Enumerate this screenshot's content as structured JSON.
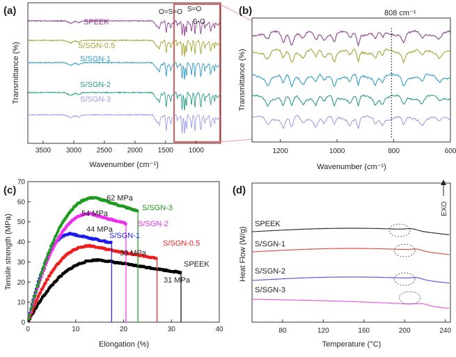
{
  "chart_data": [
    {
      "panel": "(a)",
      "type": "line",
      "xlabel": "Wavenumber (cm⁻¹)",
      "ylabel": "Transmittance (%)",
      "xlim": [
        3750,
        600
      ],
      "x_reversed": true,
      "xticks": [
        "3500",
        "3000",
        "2500",
        "2000",
        "1500",
        "1000"
      ],
      "series": [
        {
          "name": "SPEEK",
          "color": "#8e3d8e"
        },
        {
          "name": "S/SGN-0.5",
          "color": "#a3a333"
        },
        {
          "name": "S/SGN-1",
          "color": "#2e9bc4"
        },
        {
          "name": "S/SGN-2",
          "color": "#2a9a8a"
        },
        {
          "name": "S/SGN-3",
          "color": "#9c9ce8"
        }
      ],
      "annotations": [
        "O=S=O",
        "S=O",
        "S-O"
      ],
      "highlight_range": [
        1300,
        650
      ]
    },
    {
      "panel": "(b)",
      "type": "line",
      "xlabel": "Wavenumber (cm⁻¹)",
      "ylabel": "Transmittance (%)",
      "xlim": [
        1300,
        600
      ],
      "x_reversed": true,
      "xticks": [
        "1200",
        "1000",
        "800",
        "600"
      ],
      "marker_line": 808,
      "annotation": "808 cm⁻¹"
    },
    {
      "panel": "(c)",
      "type": "line",
      "xlabel": "Elongation (%)",
      "ylabel": "Tensile strength (MPa)",
      "xlim": [
        0,
        40
      ],
      "ylim": [
        0,
        70
      ],
      "xticks": [
        "0",
        "10",
        "20",
        "30",
        "40"
      ],
      "yticks": [
        "0",
        "10",
        "20",
        "30",
        "40",
        "50",
        "60",
        "70"
      ],
      "series": [
        {
          "name": "SPEEK",
          "color": "#000000",
          "max_strength": 31,
          "break_elongation": 32,
          "label": "31 MPa"
        },
        {
          "name": "S/SGN-0.5",
          "color": "#ee1c1c",
          "max_strength": 38,
          "break_elongation": 27,
          "label": "38 MPa"
        },
        {
          "name": "S/SGN-1",
          "color": "#1c1ce8",
          "max_strength": 44,
          "break_elongation": 17.5,
          "label": "44 MPa"
        },
        {
          "name": "S/SGN-2",
          "color": "#ee2cee",
          "max_strength": 54,
          "break_elongation": 20.5,
          "label": "54 MPa"
        },
        {
          "name": "S/SGN-3",
          "color": "#1c9a1c",
          "max_strength": 62,
          "break_elongation": 23,
          "label": "62 MPa"
        }
      ]
    },
    {
      "panel": "(d)",
      "type": "line",
      "xlabel": "Temperature (°C)",
      "ylabel": "Heat Flow (W/g)",
      "xlim": [
        50,
        245
      ],
      "xticks": [
        "80",
        "120",
        "160",
        "200",
        "240"
      ],
      "exo_label": "EXO",
      "series": [
        {
          "name": "SPEEK",
          "color": "#333333"
        },
        {
          "name": "S/SGN-1",
          "color": "#d9534a"
        },
        {
          "name": "S/SGN-2",
          "color": "#5a5ad6"
        },
        {
          "name": "S/SGN-3",
          "color": "#e85ae0"
        }
      ]
    }
  ]
}
